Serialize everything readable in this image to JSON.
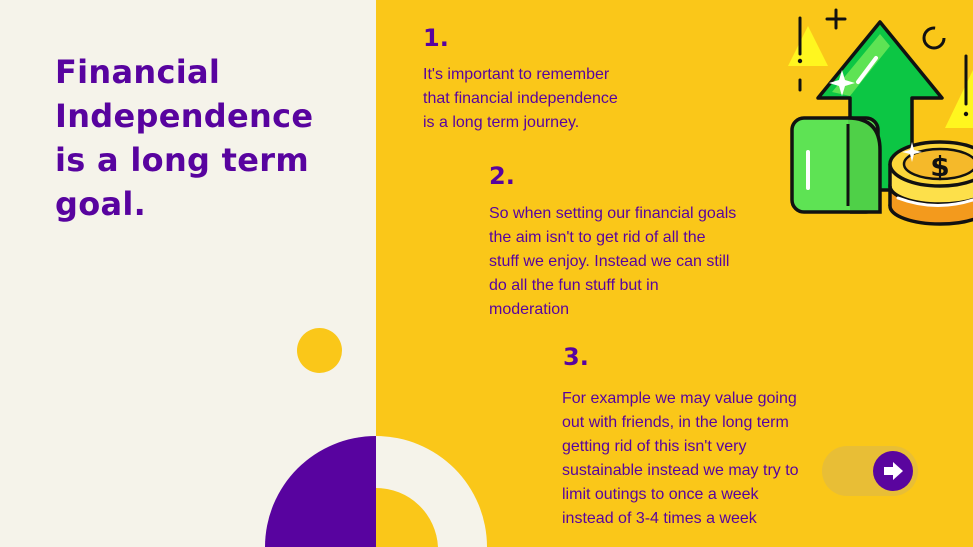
{
  "slide": {
    "title": "Financial\nIndependence\nis a long term\ngoal.",
    "points": [
      {
        "number": "1.",
        "text": "It's important to remember\nthat financial independence\nis a long term journey."
      },
      {
        "number": "2.",
        "text": "So when setting our financial goals\nthe aim isn't to get rid of all the\nstuff we enjoy. Instead we can still\ndo all the fun stuff but in\nmoderation"
      },
      {
        "number": "3.",
        "text": " For example we may value going\nout with friends, in the long term\ngetting rid of this isn't very\nsustainable instead we may try to\nlimit outings to once a week\ninstead of 3-4 times a week"
      }
    ]
  },
  "navigation": {
    "next_icon": "arrow-right-icon"
  },
  "illustration": {
    "icons": [
      "up-arrow-icon",
      "banknote-icon",
      "coin-stack-icon",
      "dollar-sign-icon",
      "sparkle-icon",
      "plus-icon",
      "warning-triangle-icon"
    ]
  },
  "colors": {
    "purple": "#58039f",
    "yellow": "#fac719",
    "cream": "#f5f3ea",
    "green": "#5ee354",
    "dark_green": "#0cc644"
  }
}
